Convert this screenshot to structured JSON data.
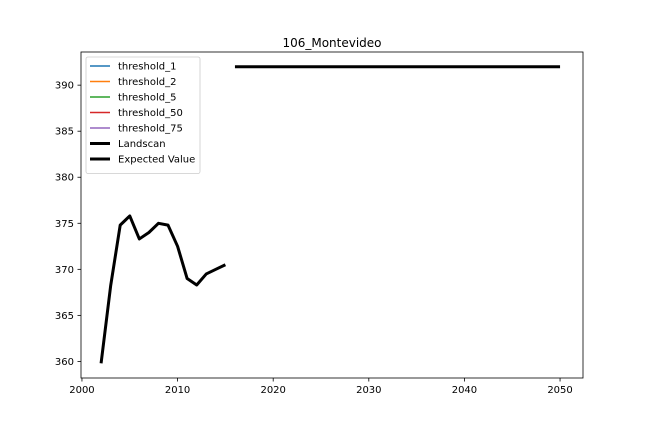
{
  "chart_data": {
    "type": "line",
    "title": "106_Montevideo",
    "xlabel": "",
    "ylabel": "",
    "xlim": [
      1999.9,
      2052.4
    ],
    "ylim": [
      358.2,
      393.6
    ],
    "xticks": [
      2000,
      2010,
      2020,
      2030,
      2040,
      2050
    ],
    "yticks": [
      360,
      365,
      370,
      375,
      380,
      385,
      390
    ],
    "grid": false,
    "legend_position": "top-left",
    "series": [
      {
        "name": "threshold_1",
        "color": "#1f77b4",
        "linewidth": 1.5,
        "x": [],
        "y": []
      },
      {
        "name": "threshold_2",
        "color": "#ff7f0e",
        "linewidth": 1.5,
        "x": [],
        "y": []
      },
      {
        "name": "threshold_5",
        "color": "#2ca02c",
        "linewidth": 1.5,
        "x": [],
        "y": []
      },
      {
        "name": "threshold_50",
        "color": "#d62728",
        "linewidth": 1.5,
        "x": [],
        "y": []
      },
      {
        "name": "threshold_75",
        "color": "#9467bd",
        "linewidth": 1.5,
        "x": [],
        "y": []
      },
      {
        "name": "Landscan",
        "color": "#000000",
        "linewidth": 3,
        "x": [
          2002,
          2003,
          2004,
          2005,
          2006,
          2007,
          2008,
          2009,
          2010,
          2011,
          2012,
          2013,
          2014,
          2015
        ],
        "y": [
          359.8,
          368.2,
          374.8,
          375.8,
          373.3,
          374.0,
          375.0,
          374.8,
          372.5,
          369.0,
          368.3,
          369.5,
          370.0,
          370.5
        ]
      },
      {
        "name": "Expected Value",
        "color": "#000000",
        "linewidth": 3,
        "x": [
          2016,
          2050
        ],
        "y": [
          392,
          392
        ]
      }
    ]
  }
}
